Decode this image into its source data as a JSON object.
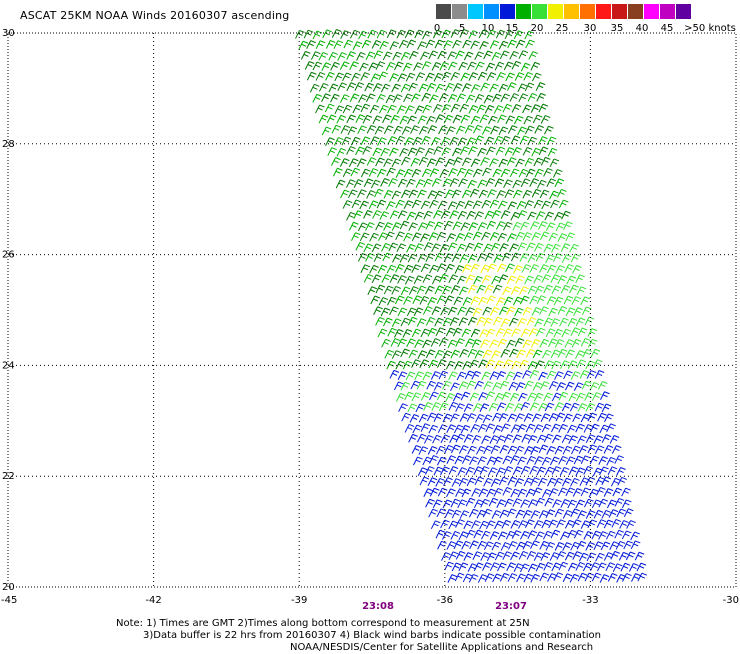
{
  "title": "ASCAT 25KM NOAA Winds 20160307 ascending",
  "colorbar": {
    "colors": [
      "#4a4a4a",
      "#8c8c8c",
      "#00c8ff",
      "#0090ff",
      "#0018d8",
      "#00b000",
      "#38e038",
      "#f0f000",
      "#ffc000",
      "#ff7000",
      "#ff1818",
      "#c81818",
      "#884020",
      "#ff00ff",
      "#c000c0",
      "#6000a0"
    ],
    "labels": [
      "0",
      "5",
      "10",
      "15",
      "20",
      "25",
      "30",
      "35",
      "40",
      "45",
      ">50 knots"
    ]
  },
  "map": {
    "lat_labels": [
      "30",
      "28",
      "26",
      "24",
      "22",
      "20"
    ],
    "lon_labels": [
      "-45",
      "-42",
      "-39",
      "-36",
      "-33",
      "-30"
    ],
    "time_labels": [
      "23:08",
      "23:07"
    ]
  },
  "notes": {
    "line1": "Note: 1) Times are GMT 2)Times along bottom correspond to measurement at 25N",
    "line2": "3)Data buffer is 22 hrs from 20160307 4) Black wind barbs indicate possible contamination",
    "line3": "NOAA/NESDIS/Center for Satellite Applications and Research"
  },
  "chart_data": {
    "type": "map",
    "title": "ASCAT 25KM NOAA Winds 20160307 ascending",
    "lat_range": [
      20,
      30
    ],
    "lon_range": [
      -45,
      -30
    ],
    "grid": true,
    "swath_corners": [
      [
        -39.2,
        30
      ],
      [
        -34.3,
        30
      ],
      [
        -31.9,
        20
      ],
      [
        -36.0,
        20
      ]
    ],
    "wind_speed_zones_knots": [
      {
        "region": "north-central swath (24-30N)",
        "speed": 18,
        "color": "#00b000"
      },
      {
        "region": "east edge of swath (22-26N)",
        "speed": 21,
        "color": "#38e038"
      },
      {
        "region": "patches near 24.5-26N, -36 to -34.5",
        "speed": 23,
        "color": "#f0f000"
      },
      {
        "region": "southwest of swath (20-23N)",
        "speed": 13,
        "color": "#0018d8"
      }
    ],
    "colorbar_ticks": [
      "0",
      "5",
      "10",
      "15",
      "20",
      "25",
      "30",
      "35",
      "40",
      "45",
      ">50 knots"
    ],
    "time_annotations": [
      "23:08",
      "23:07"
    ]
  }
}
